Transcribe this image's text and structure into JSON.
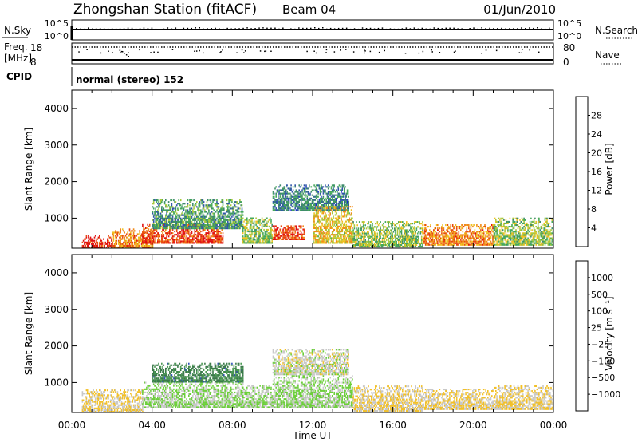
{
  "header": {
    "station": "Zhongshan Station (fitACF)",
    "beam": "Beam 04",
    "date": "01/Jun/2010"
  },
  "sky_panel": {
    "left_label": "N.Sky",
    "left_ticks": [
      "10^5",
      "10^0"
    ],
    "right_label": "N.Search",
    "right_ticks": [
      "10^5",
      "10^0"
    ]
  },
  "freq_panel": {
    "left_label_1": "Freq.",
    "left_label_2": "[MHz]",
    "left_ticks": [
      "18",
      "8"
    ],
    "right_label": "Nave",
    "right_ticks": [
      "80",
      "0"
    ]
  },
  "cpid": {
    "label": "CPID",
    "mode_text": "normal (stereo) 152"
  },
  "x_axis": {
    "label": "Time UT",
    "ticks": [
      "00:00",
      "04:00",
      "08:00",
      "12:00",
      "16:00",
      "20:00",
      "00:00"
    ]
  },
  "power_panel": {
    "y_label": "Slant Range [km]",
    "y_ticks": [
      "1000",
      "2000",
      "3000",
      "4000"
    ],
    "colorbar_label": "Power [dB]",
    "colorbar_ticks": [
      "4",
      "8",
      "12",
      "16",
      "20",
      "24",
      "28"
    ],
    "colors": [
      "#1a24d8",
      "#2f55a8",
      "#3e8a6a",
      "#45a85a",
      "#a8c83a",
      "#f0c020",
      "#f08a18",
      "#e84a10",
      "#e01010"
    ]
  },
  "velocity_panel": {
    "y_label": "Slant Range [km]",
    "y_ticks": [
      "1000",
      "2000",
      "3000",
      "4000"
    ],
    "colorbar_label": "Velocity [m s⁻¹]",
    "colorbar_ticks": [
      "1000",
      "500",
      "100",
      "25",
      "−25",
      "−100",
      "−500",
      "−1000"
    ],
    "colors": [
      "#1e2aa8",
      "#2e4eb8",
      "#3b7a4a",
      "#4a9a52",
      "#6ccf3a",
      "#c8c8c8",
      "#f2c028",
      "#f4a020",
      "#ee7a18",
      "#e84a10",
      "#e01010"
    ]
  },
  "chart_data": [
    {
      "type": "heatmap",
      "title": "Power [dB]",
      "xlabel": "Time UT",
      "ylabel": "Slant Range [km]",
      "xlim": [
        "00:00",
        "24:00"
      ],
      "ylim": [
        180,
        4500
      ],
      "zlim": [
        0,
        30
      ],
      "regions": [
        {
          "t": [
            0.5,
            2.0
          ],
          "range": [
            180,
            500
          ],
          "value": 28
        },
        {
          "t": [
            2.0,
            4.0
          ],
          "range": [
            180,
            700
          ],
          "value": 22
        },
        {
          "t": [
            3.5,
            7.5
          ],
          "range": [
            300,
            800
          ],
          "value": 26
        },
        {
          "t": [
            4.0,
            8.5
          ],
          "range": [
            700,
            1500
          ],
          "value": 10
        },
        {
          "t": [
            8.5,
            10.0
          ],
          "range": [
            300,
            1000
          ],
          "value": 14
        },
        {
          "t": [
            10.0,
            11.6
          ],
          "range": [
            400,
            800
          ],
          "value": 26
        },
        {
          "t": [
            10.0,
            13.8
          ],
          "range": [
            1200,
            1900
          ],
          "value": 8
        },
        {
          "t": [
            12.0,
            14.0
          ],
          "range": [
            300,
            1300
          ],
          "value": 18
        },
        {
          "t": [
            14.0,
            17.5
          ],
          "range": [
            200,
            900
          ],
          "value": 14
        },
        {
          "t": [
            17.5,
            21.0
          ],
          "range": [
            250,
            800
          ],
          "value": 22
        },
        {
          "t": [
            21.0,
            24.0
          ],
          "range": [
            250,
            1000
          ],
          "value": 14
        }
      ]
    },
    {
      "type": "heatmap",
      "title": "Velocity [m s⁻¹]",
      "xlabel": "Time UT",
      "ylabel": "Slant Range [km]",
      "xlim": [
        "00:00",
        "24:00"
      ],
      "ylim": [
        180,
        4500
      ],
      "zlim": [
        -1000,
        1000
      ],
      "regions": [
        {
          "t": [
            0.5,
            3.5
          ],
          "range": [
            180,
            800
          ],
          "value": -100
        },
        {
          "t": [
            3.5,
            8.5
          ],
          "range": [
            300,
            1000
          ],
          "value": 100
        },
        {
          "t": [
            4.0,
            8.5
          ],
          "range": [
            1000,
            1500
          ],
          "value": 500
        },
        {
          "t": [
            8.5,
            10.0
          ],
          "range": [
            300,
            900
          ],
          "value": 100
        },
        {
          "t": [
            10.0,
            13.8
          ],
          "range": [
            1200,
            1900
          ],
          "value": 0
        },
        {
          "t": [
            10.0,
            14.0
          ],
          "range": [
            300,
            1200
          ],
          "value": 100
        },
        {
          "t": [
            14.0,
            17.5
          ],
          "range": [
            200,
            900
          ],
          "value": -100
        },
        {
          "t": [
            17.5,
            21.0
          ],
          "range": [
            250,
            800
          ],
          "value": -100
        },
        {
          "t": [
            21.0,
            24.0
          ],
          "range": [
            250,
            900
          ],
          "value": -100
        }
      ]
    }
  ]
}
